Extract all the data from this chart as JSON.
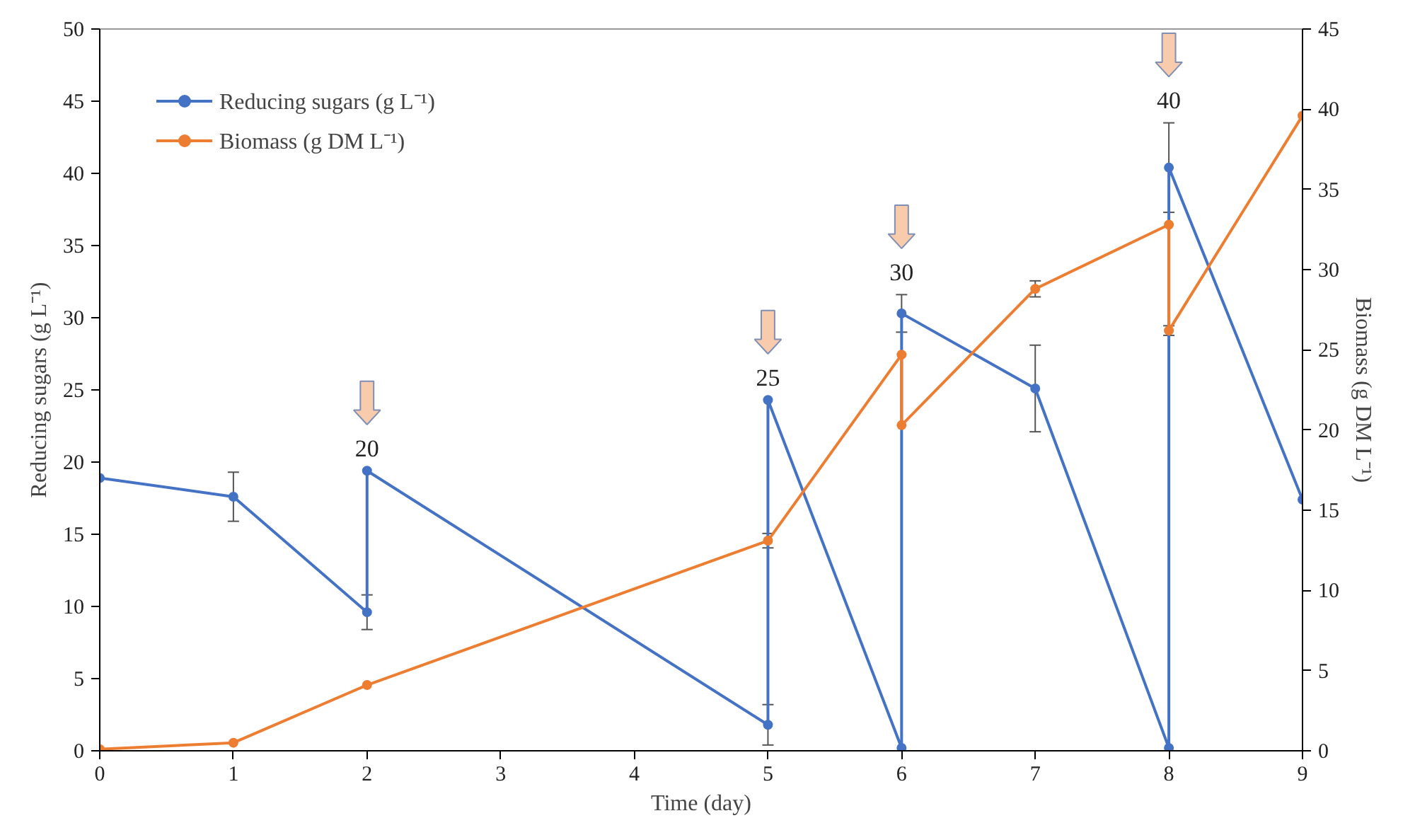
{
  "chart_data": {
    "type": "line",
    "xlabel": "Time (day)",
    "ylabel": "Reducing sugars (g L⁻¹)",
    "y2label": "Biomass (g DM L⁻¹)",
    "xlim": [
      0,
      9
    ],
    "xticks": [
      0,
      1,
      2,
      3,
      4,
      5,
      6,
      7,
      8,
      9
    ],
    "ylim": [
      0,
      50
    ],
    "yticks": [
      0,
      5,
      10,
      15,
      20,
      25,
      30,
      35,
      40,
      45,
      50
    ],
    "y2lim": [
      0,
      45
    ],
    "y2ticks": [
      0,
      5,
      10,
      15,
      20,
      25,
      30,
      35,
      40,
      45
    ],
    "grid": false,
    "legend": "top left",
    "marker": "circle",
    "line_style": "solid",
    "series": [
      {
        "name": "Reducing sugars (g L⁻¹)",
        "color": "#4472c4",
        "x": [
          0,
          1,
          2,
          2,
          5,
          5,
          6,
          6,
          7,
          8,
          8,
          9
        ],
        "values": [
          18.9,
          17.6,
          9.6,
          19.4,
          1.8,
          24.3,
          0.2,
          30.3,
          25.1,
          0.2,
          40.4,
          17.4
        ],
        "errors": [
          null,
          1.7,
          1.2,
          null,
          1.4,
          null,
          null,
          1.3,
          3.0,
          null,
          3.1,
          null
        ]
      },
      {
        "name": "Biomass (g DM L⁻¹)",
        "color": "#ed7d31",
        "axis": "y2",
        "x": [
          0,
          1,
          2,
          5,
          6,
          6,
          7,
          8,
          8,
          9
        ],
        "values": [
          0.1,
          0.5,
          4.1,
          13.1,
          24.7,
          20.3,
          28.8,
          32.8,
          26.2,
          39.6
        ],
        "errors": [
          null,
          null,
          null,
          0.45,
          null,
          null,
          0.5,
          null,
          0.3,
          null
        ]
      }
    ],
    "annotations": [
      {
        "text": "20",
        "x": 2,
        "y": 19.4
      },
      {
        "text": "25",
        "x": 5,
        "y": 24.3
      },
      {
        "text": "30",
        "x": 6,
        "y": 30.3
      },
      {
        "text": "40",
        "x": 8,
        "y": 40.4
      }
    ]
  }
}
